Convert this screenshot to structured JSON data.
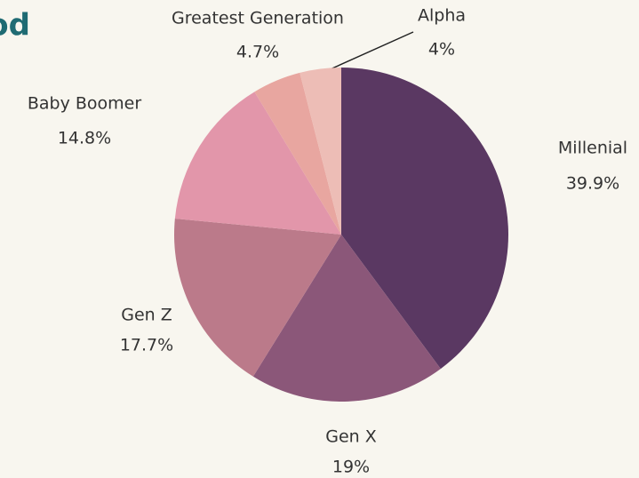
{
  "chart_data": {
    "type": "pie",
    "title": "od",
    "categories": [
      "Millenial",
      "Gen X",
      "Gen Z",
      "Baby Boomer",
      "Greatest Generation",
      "Alpha"
    ],
    "values": [
      39.9,
      19,
      17.7,
      14.8,
      4.7,
      4
    ],
    "value_labels": [
      "39.9%",
      "19%",
      "17.7%",
      "14.8%",
      "4.7%",
      "4%"
    ],
    "colors": [
      "#5a3862",
      "#8b5779",
      "#bb7a8a",
      "#e296aa",
      "#e8a6a0",
      "#edbdb6"
    ]
  }
}
